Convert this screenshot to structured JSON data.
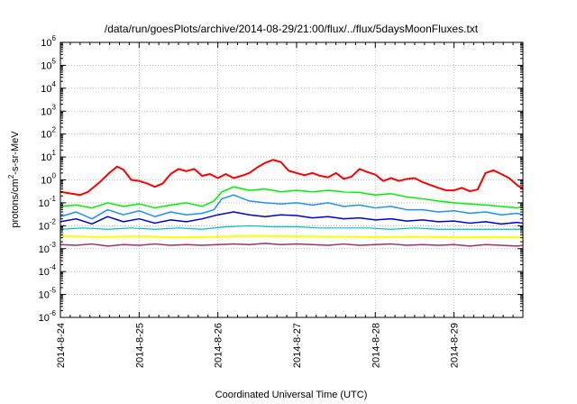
{
  "chart_data": {
    "type": "line",
    "title": "/data/run/goesPlots/archive/2014-08-29/21:00/flux/../flux/5daysMoonFluxes.txt",
    "xlabel": "Coordinated Universal Time (UTC)",
    "ylabel": "protons/cm²-s-sr-MeV",
    "yscale": "log",
    "ylim": [
      1e-06,
      1000000.0
    ],
    "xlim": [
      "2014-08-24 00:00",
      "2014-08-29 21:00"
    ],
    "grid": true,
    "y_ticks": [
      {
        "exp": "-6",
        "value": 1e-06
      },
      {
        "exp": "-5",
        "value": 1e-05
      },
      {
        "exp": "-4",
        "value": 0.0001
      },
      {
        "exp": "-3",
        "value": 0.001
      },
      {
        "exp": "-2",
        "value": 0.01
      },
      {
        "exp": "-1",
        "value": 0.1
      },
      {
        "exp": "0",
        "value": 1
      },
      {
        "exp": "1",
        "value": 10.0
      },
      {
        "exp": "2",
        "value": 100.0
      },
      {
        "exp": "3",
        "value": 1000.0
      },
      {
        "exp": "4",
        "value": 10000.0
      },
      {
        "exp": "5",
        "value": 100000.0
      },
      {
        "exp": "6",
        "value": 1000000.0
      }
    ],
    "x_ticks": [
      {
        "label": "2014-8-24",
        "day": 0
      },
      {
        "label": "2014-8-25",
        "day": 1
      },
      {
        "label": "2014-8-26",
        "day": 2
      },
      {
        "label": "2014-8-27",
        "day": 3
      },
      {
        "label": "2014-8-28",
        "day": 4
      },
      {
        "label": "2014-8-29",
        "day": 5
      }
    ],
    "series": [
      {
        "color": "#ff0000",
        "width": 2,
        "points": [
          [
            0,
            0.3
          ],
          [
            0.25,
            0.22
          ],
          [
            0.35,
            0.3
          ],
          [
            0.5,
            0.8
          ],
          [
            0.62,
            2.0
          ],
          [
            0.72,
            3.8
          ],
          [
            0.8,
            2.8
          ],
          [
            0.9,
            1.0
          ],
          [
            1.0,
            0.9
          ],
          [
            1.1,
            0.7
          ],
          [
            1.2,
            0.5
          ],
          [
            1.3,
            0.7
          ],
          [
            1.4,
            1.8
          ],
          [
            1.5,
            3.0
          ],
          [
            1.6,
            2.4
          ],
          [
            1.7,
            3.0
          ],
          [
            1.8,
            1.5
          ],
          [
            1.9,
            1.8
          ],
          [
            2.0,
            1.2
          ],
          [
            2.1,
            1.8
          ],
          [
            2.2,
            1.2
          ],
          [
            2.3,
            1.5
          ],
          [
            2.4,
            2.0
          ],
          [
            2.5,
            3.5
          ],
          [
            2.6,
            5.5
          ],
          [
            2.7,
            7.5
          ],
          [
            2.8,
            6.0
          ],
          [
            2.9,
            2.5
          ],
          [
            3.0,
            2.0
          ],
          [
            3.1,
            1.6
          ],
          [
            3.2,
            2.0
          ],
          [
            3.3,
            1.5
          ],
          [
            3.4,
            1.3
          ],
          [
            3.5,
            2.0
          ],
          [
            3.6,
            1.1
          ],
          [
            3.7,
            1.4
          ],
          [
            3.8,
            3.0
          ],
          [
            3.9,
            2.2
          ],
          [
            4.0,
            1.7
          ],
          [
            4.1,
            0.9
          ],
          [
            4.2,
            1.2
          ],
          [
            4.3,
            0.9
          ],
          [
            4.4,
            1.1
          ],
          [
            4.5,
            1.2
          ],
          [
            4.6,
            0.8
          ],
          [
            4.7,
            0.6
          ],
          [
            4.8,
            0.45
          ],
          [
            4.9,
            0.35
          ],
          [
            5.0,
            0.35
          ],
          [
            5.1,
            0.45
          ],
          [
            5.2,
            0.32
          ],
          [
            5.3,
            0.38
          ],
          [
            5.4,
            2.0
          ],
          [
            5.5,
            2.6
          ],
          [
            5.6,
            1.8
          ],
          [
            5.7,
            1.2
          ],
          [
            5.8,
            0.6
          ],
          [
            5.875,
            0.4
          ]
        ]
      },
      {
        "color": "#00ee00",
        "width": 1.5,
        "points": [
          [
            0,
            0.07
          ],
          [
            0.2,
            0.08
          ],
          [
            0.4,
            0.06
          ],
          [
            0.6,
            0.1
          ],
          [
            0.8,
            0.07
          ],
          [
            1.0,
            0.09
          ],
          [
            1.2,
            0.06
          ],
          [
            1.4,
            0.08
          ],
          [
            1.6,
            0.1
          ],
          [
            1.8,
            0.07
          ],
          [
            1.95,
            0.12
          ],
          [
            2.05,
            0.3
          ],
          [
            2.2,
            0.5
          ],
          [
            2.4,
            0.35
          ],
          [
            2.6,
            0.4
          ],
          [
            2.8,
            0.3
          ],
          [
            3.0,
            0.35
          ],
          [
            3.2,
            0.3
          ],
          [
            3.4,
            0.35
          ],
          [
            3.6,
            0.3
          ],
          [
            3.8,
            0.28
          ],
          [
            4.0,
            0.22
          ],
          [
            4.2,
            0.25
          ],
          [
            4.4,
            0.18
          ],
          [
            4.6,
            0.15
          ],
          [
            4.8,
            0.12
          ],
          [
            5.0,
            0.1
          ],
          [
            5.2,
            0.09
          ],
          [
            5.4,
            0.08
          ],
          [
            5.6,
            0.07
          ],
          [
            5.8,
            0.06
          ],
          [
            5.875,
            0.07
          ]
        ]
      },
      {
        "color": "#1e90ff",
        "width": 1.5,
        "points": [
          [
            0,
            0.025
          ],
          [
            0.2,
            0.04
          ],
          [
            0.4,
            0.02
          ],
          [
            0.6,
            0.05
          ],
          [
            0.8,
            0.03
          ],
          [
            1.0,
            0.045
          ],
          [
            1.2,
            0.025
          ],
          [
            1.4,
            0.04
          ],
          [
            1.6,
            0.03
          ],
          [
            1.8,
            0.035
          ],
          [
            1.95,
            0.05
          ],
          [
            2.05,
            0.15
          ],
          [
            2.2,
            0.22
          ],
          [
            2.4,
            0.12
          ],
          [
            2.6,
            0.1
          ],
          [
            2.8,
            0.09
          ],
          [
            3.0,
            0.1
          ],
          [
            3.2,
            0.08
          ],
          [
            3.4,
            0.1
          ],
          [
            3.6,
            0.07
          ],
          [
            3.8,
            0.08
          ],
          [
            4.0,
            0.06
          ],
          [
            4.2,
            0.07
          ],
          [
            4.4,
            0.05
          ],
          [
            4.6,
            0.05
          ],
          [
            4.8,
            0.04
          ],
          [
            5.0,
            0.045
          ],
          [
            5.2,
            0.035
          ],
          [
            5.4,
            0.04
          ],
          [
            5.6,
            0.03
          ],
          [
            5.8,
            0.035
          ],
          [
            5.875,
            0.03
          ]
        ]
      },
      {
        "color": "#0000cc",
        "width": 1.5,
        "points": [
          [
            0,
            0.015
          ],
          [
            0.2,
            0.02
          ],
          [
            0.4,
            0.012
          ],
          [
            0.6,
            0.025
          ],
          [
            0.8,
            0.015
          ],
          [
            1.0,
            0.02
          ],
          [
            1.2,
            0.013
          ],
          [
            1.4,
            0.018
          ],
          [
            1.6,
            0.015
          ],
          [
            1.8,
            0.02
          ],
          [
            2.0,
            0.03
          ],
          [
            2.2,
            0.04
          ],
          [
            2.4,
            0.03
          ],
          [
            2.6,
            0.025
          ],
          [
            2.8,
            0.03
          ],
          [
            3.0,
            0.028
          ],
          [
            3.2,
            0.022
          ],
          [
            3.4,
            0.025
          ],
          [
            3.6,
            0.02
          ],
          [
            3.8,
            0.022
          ],
          [
            4.0,
            0.018
          ],
          [
            4.2,
            0.02
          ],
          [
            4.4,
            0.016
          ],
          [
            4.6,
            0.018
          ],
          [
            4.8,
            0.015
          ],
          [
            5.0,
            0.016
          ],
          [
            5.2,
            0.013
          ],
          [
            5.4,
            0.015
          ],
          [
            5.6,
            0.012
          ],
          [
            5.8,
            0.014
          ],
          [
            5.875,
            0.013
          ]
        ]
      },
      {
        "color": "#00bfbf",
        "width": 1.2,
        "points": [
          [
            0,
            0.007
          ],
          [
            0.3,
            0.008
          ],
          [
            0.6,
            0.007
          ],
          [
            0.9,
            0.008
          ],
          [
            1.2,
            0.007
          ],
          [
            1.5,
            0.008
          ],
          [
            1.8,
            0.007
          ],
          [
            2.1,
            0.009
          ],
          [
            2.4,
            0.01
          ],
          [
            2.7,
            0.009
          ],
          [
            3.0,
            0.009
          ],
          [
            3.3,
            0.008
          ],
          [
            3.6,
            0.008
          ],
          [
            3.9,
            0.008
          ],
          [
            4.2,
            0.007
          ],
          [
            4.5,
            0.008
          ],
          [
            4.8,
            0.007
          ],
          [
            5.1,
            0.007
          ],
          [
            5.4,
            0.007
          ],
          [
            5.7,
            0.007
          ],
          [
            5.875,
            0.007
          ]
        ]
      },
      {
        "color": "#ffff00",
        "width": 2,
        "points": [
          [
            0,
            0.0035
          ],
          [
            0.5,
            0.0032
          ],
          [
            1.0,
            0.0034
          ],
          [
            1.5,
            0.0031
          ],
          [
            2.0,
            0.0033
          ],
          [
            2.5,
            0.0036
          ],
          [
            3.0,
            0.0034
          ],
          [
            3.5,
            0.0033
          ],
          [
            4.0,
            0.0032
          ],
          [
            4.5,
            0.0033
          ],
          [
            5.0,
            0.0031
          ],
          [
            5.5,
            0.0032
          ],
          [
            5.875,
            0.0031
          ]
        ]
      },
      {
        "color": "#993366",
        "width": 1.5,
        "points": [
          [
            0,
            0.0015
          ],
          [
            0.2,
            0.0014
          ],
          [
            0.4,
            0.0016
          ],
          [
            0.6,
            0.0013
          ],
          [
            0.8,
            0.0015
          ],
          [
            1.0,
            0.0014
          ],
          [
            1.2,
            0.0016
          ],
          [
            1.4,
            0.0014
          ],
          [
            1.6,
            0.0015
          ],
          [
            1.8,
            0.0014
          ],
          [
            2.0,
            0.0015
          ],
          [
            2.2,
            0.0016
          ],
          [
            2.4,
            0.0015
          ],
          [
            2.6,
            0.0017
          ],
          [
            2.8,
            0.0015
          ],
          [
            3.0,
            0.0016
          ],
          [
            3.2,
            0.0015
          ],
          [
            3.4,
            0.0014
          ],
          [
            3.6,
            0.0016
          ],
          [
            3.8,
            0.0014
          ],
          [
            4.0,
            0.0015
          ],
          [
            4.2,
            0.0016
          ],
          [
            4.4,
            0.0014
          ],
          [
            4.6,
            0.0015
          ],
          [
            4.8,
            0.0014
          ],
          [
            5.0,
            0.0015
          ],
          [
            5.2,
            0.0013
          ],
          [
            5.4,
            0.0015
          ],
          [
            5.6,
            0.0014
          ],
          [
            5.8,
            0.0013
          ],
          [
            5.875,
            0.0014
          ]
        ]
      }
    ]
  }
}
